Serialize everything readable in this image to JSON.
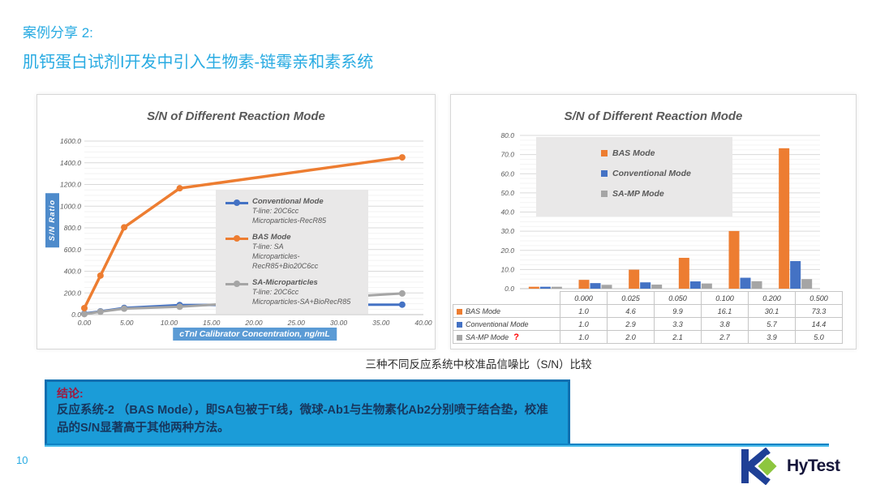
{
  "slide": {
    "title_line1": "案例分享 2:",
    "title_line2": "肌钙蛋白试剂I开发中引入生物素-链霉亲和素系统",
    "caption": "三种不同反应系统中校准品信噪比（S/N）比较",
    "conclusion": {
      "heading": "结论:",
      "body": "反应系统-2 （BAS Mode），即SA包被于T线，微球-Ab1与生物素化Ab2分别喷于结合垫，校准品的S/N显著高于其他两种方法。"
    },
    "page_number": "10",
    "logo_text": "HyTest",
    "colors": {
      "heading_blue": "#29ABE2",
      "conclusion_bg": "#1B9CD8",
      "conclusion_border": "#0E6FB0",
      "conclusion_heading": "#A0193F",
      "conclusion_text": "#17365D",
      "logo_blue": "#1F4096",
      "logo_green": "#8DC63F"
    }
  },
  "chart_data": [
    {
      "type": "line",
      "title": "S/N of Different Reaction Mode",
      "xlabel": "cTnI Calibrator Concentration, ng/mL",
      "ylabel": "S/N Ratio",
      "xlim": [
        0,
        40
      ],
      "ylim": [
        0,
        1600
      ],
      "x_ticks": [
        "0.00",
        "5.00",
        "10.00",
        "15.00",
        "20.00",
        "25.00",
        "30.00",
        "35.00",
        "40.00"
      ],
      "y_ticks": [
        "0.0",
        "200.0",
        "400.0",
        "600.0",
        "800.0",
        "1000.0",
        "1200.0",
        "1400.0",
        "1600.0"
      ],
      "grid": true,
      "legend_position": "center-right",
      "x": [
        0,
        1.9,
        4.7,
        11.25,
        37.5
      ],
      "series": [
        {
          "name": "Conventional Mode",
          "detail": [
            "T-line: 20C6cc",
            "Microparticles-RecR85"
          ],
          "color": "#4472C4",
          "values": [
            10,
            30,
            62,
            88,
            92
          ]
        },
        {
          "name": "BAS Mode",
          "detail": [
            "T-line:  SA",
            "Microparticles-RecR85+Bio20C6cc"
          ],
          "color": "#ED7D31",
          "values": [
            60,
            360,
            805,
            1165,
            1450
          ]
        },
        {
          "name": "SA-Microparticles",
          "detail": [
            "T-line: 20C6cc",
            "Microparticles-SA+BioRecR85"
          ],
          "color": "#A5A5A5",
          "values": [
            5,
            27,
            55,
            73,
            195
          ]
        }
      ]
    },
    {
      "type": "bar",
      "title": "S/N of Different Reaction Mode",
      "categories": [
        "0.000",
        "0.025",
        "0.050",
        "0.100",
        "0.200",
        "0.500"
      ],
      "ylim": [
        0,
        80
      ],
      "y_ticks": [
        "0.0",
        "10.0",
        "20.0",
        "30.0",
        "40.0",
        "50.0",
        "60.0",
        "70.0",
        "80.0"
      ],
      "grid": true,
      "legend_position": "top-left",
      "data_table": true,
      "series": [
        {
          "name": "BAS Mode",
          "color": "#ED7D31",
          "values": [
            1.0,
            4.6,
            9.9,
            16.1,
            30.1,
            73.3
          ],
          "annotation": ""
        },
        {
          "name": "Conventional Mode",
          "color": "#4472C4",
          "values": [
            1.0,
            2.9,
            3.3,
            3.8,
            5.7,
            14.4
          ],
          "annotation": ""
        },
        {
          "name": "SA-MP Mode",
          "color": "#A5A5A5",
          "values": [
            1.0,
            2.0,
            2.1,
            2.7,
            3.9,
            5.0
          ],
          "annotation": "?"
        }
      ]
    }
  ]
}
